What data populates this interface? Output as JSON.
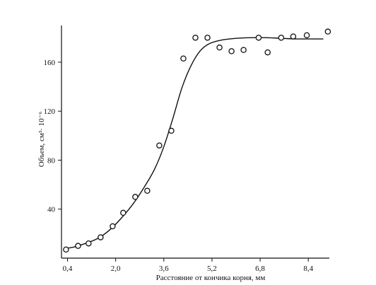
{
  "chart_data": {
    "type": "scatter",
    "xlabel": "Расстояние от кончика корня, мм",
    "ylabel": "Объем, см³· 10⁻⁶",
    "xlim": [
      0.2,
      9.1
    ],
    "ylim": [
      0,
      190
    ],
    "xticks": [
      0.4,
      2.0,
      3.6,
      5.2,
      6.8,
      8.4
    ],
    "xtick_labels": [
      "0,4",
      "2,0",
      "3,6",
      "5,2",
      "6,8",
      "8,4"
    ],
    "yticks": [
      40,
      80,
      120,
      160
    ],
    "ytick_labels": [
      "40",
      "80",
      "120",
      "160"
    ],
    "grid": false,
    "series": [
      {
        "kind": "points",
        "marker": "open-circle",
        "x": [
          0.35,
          0.75,
          1.1,
          1.5,
          1.9,
          2.25,
          2.65,
          3.05,
          3.45,
          3.85,
          4.25,
          4.65,
          5.05,
          5.45,
          5.85,
          6.25,
          6.75,
          7.05,
          7.5,
          7.9,
          8.35,
          9.05
        ],
        "y": [
          7,
          10,
          12,
          17,
          26,
          37,
          50,
          55,
          92,
          104,
          163,
          180,
          180,
          172,
          169,
          170,
          180,
          168,
          180,
          181,
          182,
          185
        ]
      },
      {
        "kind": "fit-curve",
        "x": [
          0.35,
          0.6,
          1.0,
          1.4,
          1.8,
          2.2,
          2.6,
          3.0,
          3.3,
          3.6,
          3.9,
          4.2,
          4.5,
          4.8,
          5.1,
          5.5,
          6.0,
          6.5,
          7.0,
          7.5,
          8.0,
          8.5,
          8.9
        ],
        "y": [
          8,
          9,
          12,
          16,
          23,
          33,
          45,
          60,
          73,
          91,
          114,
          139,
          157,
          169,
          175,
          178,
          179.5,
          180,
          180,
          179.5,
          179,
          179,
          179
        ]
      }
    ]
  }
}
